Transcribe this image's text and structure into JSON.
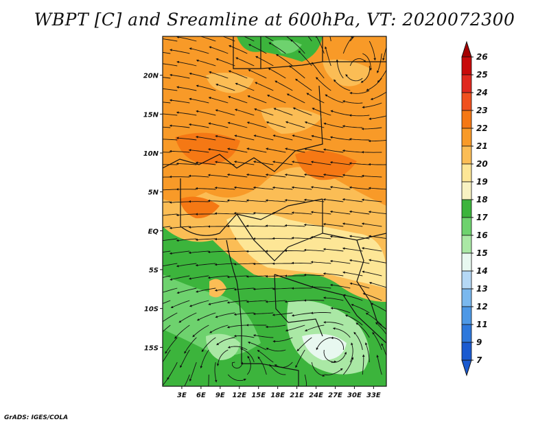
{
  "title": "WBPT [C] and Sreamline at 600hPa, VT: 2020072300",
  "credit": "GrADS: IGES/COLA",
  "map": {
    "lon_range": [
      0,
      35
    ],
    "lat_range": [
      -20,
      25
    ],
    "x_ticks": [
      "3E",
      "6E",
      "9E",
      "12E",
      "15E",
      "18E",
      "21E",
      "24E",
      "27E",
      "30E",
      "33E"
    ],
    "x_tick_values": [
      3,
      6,
      9,
      12,
      15,
      18,
      21,
      24,
      27,
      30,
      33
    ],
    "y_ticks": [
      "20N",
      "15N",
      "10N",
      "5N",
      "EQ",
      "5S",
      "10S",
      "15S"
    ],
    "y_tick_values": [
      20,
      15,
      10,
      5,
      0,
      -5,
      -10,
      -15
    ]
  },
  "colorbar": {
    "levels": [
      "26",
      "25",
      "24",
      "23",
      "22",
      "21",
      "20",
      "19",
      "18",
      "17",
      "16",
      "15",
      "14",
      "13",
      "12",
      "11",
      "9",
      "7"
    ],
    "colors": [
      "#a50000",
      "#c80a0a",
      "#e0281e",
      "#f0501e",
      "#f57814",
      "#f89a28",
      "#fbbd55",
      "#fde696",
      "#f8f2c2",
      "#3cb43c",
      "#6ed26e",
      "#aae8a5",
      "#e8f8f0",
      "#b5d8f5",
      "#7ab8ee",
      "#4d98e6",
      "#2d78dc",
      "#1a5ad0"
    ]
  }
}
